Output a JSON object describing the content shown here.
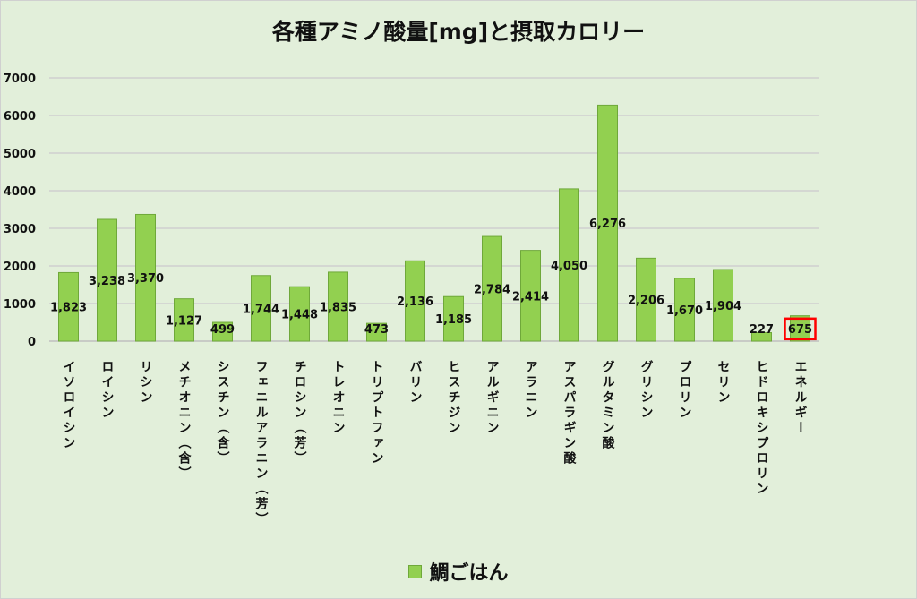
{
  "chart_data": {
    "type": "bar",
    "title": "各種アミノ酸量[mg]と摂取カロリー",
    "xlabel": "",
    "ylabel": "",
    "ylim": [
      0,
      7000
    ],
    "yticks": [
      0,
      1000,
      2000,
      3000,
      4000,
      5000,
      6000,
      7000
    ],
    "grid": true,
    "legend_position": "bottom",
    "categories": [
      "イソロイシン",
      "ロイシン",
      "リシン",
      "メチオニン（含）",
      "シスチン（含）",
      "フェニルアラニン（芳）",
      "チロシン（芳）",
      "トレオニン",
      "トリプトファン",
      "バリン",
      "ヒスチジン",
      "アルギニン",
      "アラニン",
      "アスパラギン酸",
      "グルタミン酸",
      "グリシン",
      "プロリン",
      "セリン",
      "ヒドロキシプロリン",
      "エネルギー"
    ],
    "series": [
      {
        "name": "鯛ごはん",
        "color": "#92d050",
        "values": [
          1823,
          3238,
          3370,
          1127,
          499,
          1744,
          1448,
          1835,
          473,
          2136,
          1185,
          2784,
          2414,
          4050,
          6276,
          2206,
          1670,
          1904,
          227,
          675
        ],
        "data_labels": [
          "1,823",
          "3,238",
          "3,370",
          "1,127",
          "499",
          "1,744",
          "1,448",
          "1,835",
          "473",
          "2,136",
          "1,185",
          "2,784",
          "2,414",
          "4,050",
          "6,276",
          "2,206",
          "1,670",
          "1,904",
          "227",
          "675"
        ]
      }
    ],
    "highlighted_label_index": 19,
    "highlight_color": "#ff0000"
  }
}
